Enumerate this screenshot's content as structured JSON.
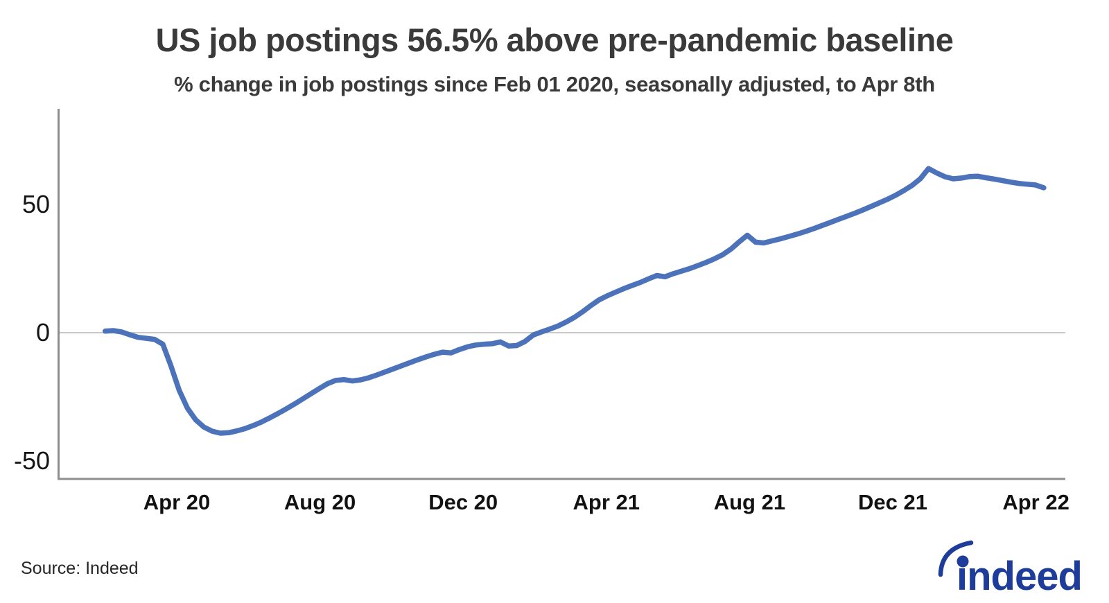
{
  "footer": {
    "source": "Source: Indeed",
    "logo_text": "indeed"
  },
  "chart_data": {
    "type": "line",
    "title": "US job postings 56.5% above pre-pandemic baseline",
    "subtitle": "% change in job postings since Feb 01 2020, seasonally adjusted, to Apr 8th",
    "series_name": "US job postings, % change since Feb 01 2020",
    "x_start": "2020-02-01",
    "x_end": "2022-04-08",
    "x_interval": "weekly",
    "x_tick_labels": [
      "Apr 20",
      "Aug 20",
      "Dec 20",
      "Apr 21",
      "Aug 21",
      "Dec 21",
      "Apr 22"
    ],
    "x_tick_positions_months": [
      2,
      6,
      10,
      14,
      18,
      22,
      26
    ],
    "y_tick_labels": [
      "50",
      "0",
      "-50"
    ],
    "y_ticks": [
      50,
      0,
      -50
    ],
    "ylim": [
      -57,
      87
    ],
    "grid": "zero-line-only",
    "legend": "none",
    "line_color": "#4C73B9",
    "logo_color": "#1E3C99",
    "axis_color": "#8E8E8E",
    "zero_line_color": "#C9C9C9",
    "latest_value": 56.5,
    "trough_value": -39.2,
    "peak_value": 64.0,
    "values": [
      0.6,
      0.8,
      0.3,
      -0.8,
      -1.8,
      -2.2,
      -2.6,
      -4.5,
      -13.0,
      -22.5,
      -29.5,
      -34.0,
      -36.8,
      -38.4,
      -39.2,
      -39.0,
      -38.3,
      -37.4,
      -36.2,
      -34.8,
      -33.2,
      -31.5,
      -29.7,
      -27.8,
      -25.8,
      -23.8,
      -21.8,
      -19.9,
      -18.6,
      -18.3,
      -18.8,
      -18.4,
      -17.6,
      -16.5,
      -15.3,
      -14.1,
      -12.9,
      -11.7,
      -10.5,
      -9.4,
      -8.4,
      -7.6,
      -7.9,
      -6.6,
      -5.5,
      -4.8,
      -4.5,
      -4.3,
      -3.6,
      -5.2,
      -5.0,
      -3.4,
      -0.9,
      0.3,
      1.4,
      2.6,
      4.2,
      6.0,
      8.2,
      10.6,
      12.8,
      14.4,
      15.8,
      17.2,
      18.4,
      19.6,
      21.0,
      22.3,
      21.8,
      23.0,
      24.0,
      25.0,
      26.2,
      27.4,
      28.8,
      30.4,
      32.6,
      35.4,
      38.0,
      35.3,
      35.0,
      35.8,
      36.6,
      37.5,
      38.4,
      39.4,
      40.5,
      41.7,
      42.9,
      44.1,
      45.3,
      46.5,
      47.8,
      49.2,
      50.6,
      52.0,
      53.6,
      55.4,
      57.4,
      60.0,
      64.0,
      62.3,
      60.8,
      60.0,
      60.3,
      60.9,
      61.0,
      60.4,
      59.9,
      59.3,
      58.7,
      58.2,
      57.9,
      57.6,
      56.5
    ]
  }
}
